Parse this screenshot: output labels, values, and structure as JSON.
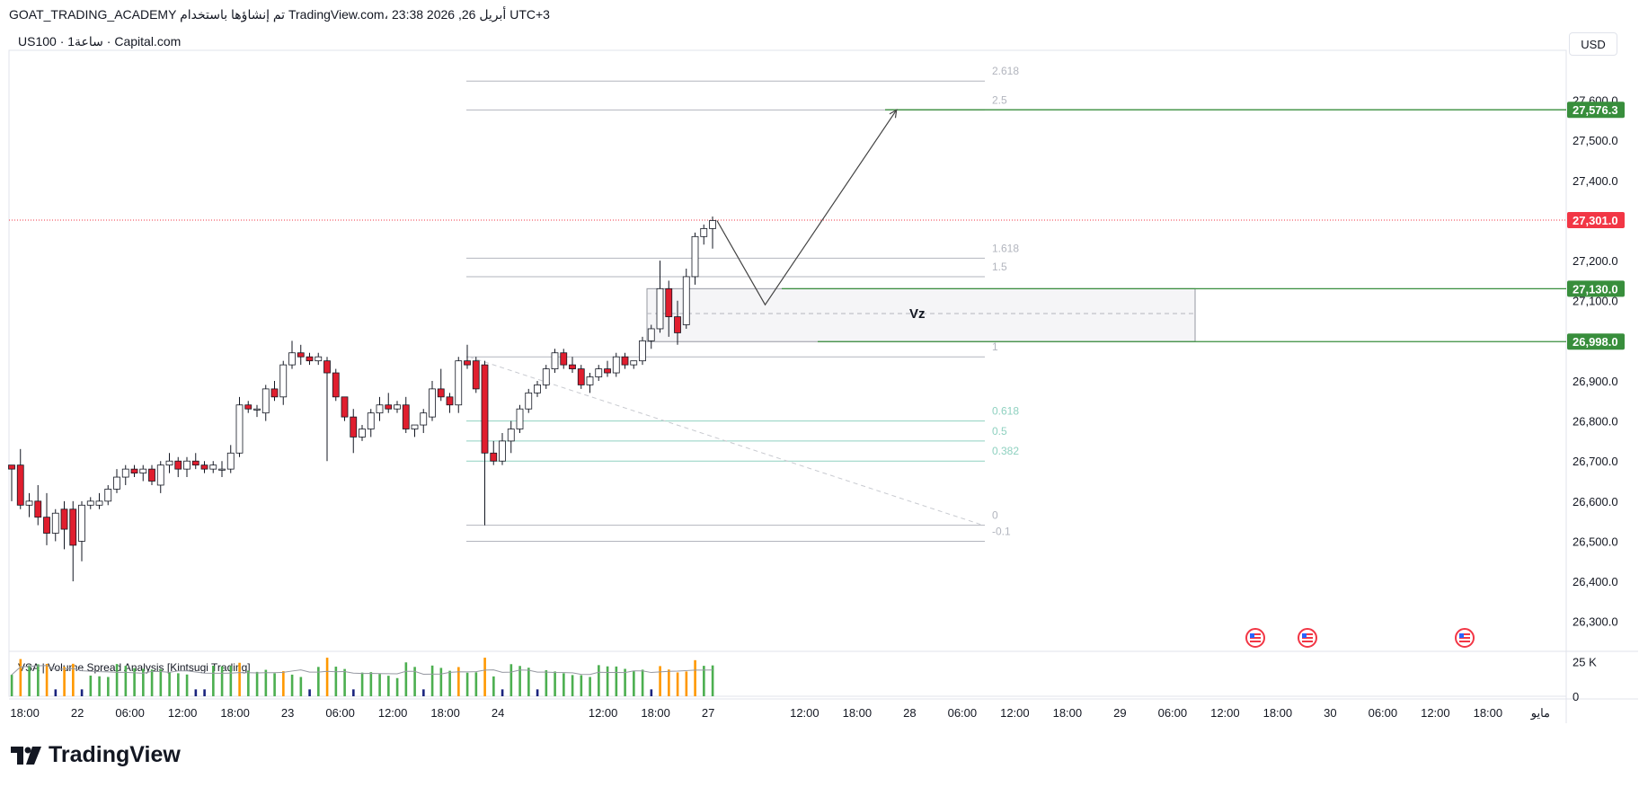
{
  "header": {
    "caption": "GOAT_TRADING_ACADEMY تم إنشاؤها باستخدام TradingView.com، 23:38 2026 ,26 أبريل UTC+3",
    "symbol": "US100 · 1ساعة · Capital.com",
    "currency": "USD"
  },
  "branding": {
    "logo_text": "TradingView"
  },
  "chart_data": {
    "type": "candlestick",
    "ylim": [
      26250,
      27700
    ],
    "y_ticks": [
      {
        "value": 27600,
        "label": "27,600.0"
      },
      {
        "value": 27500,
        "label": "27,500.0"
      },
      {
        "value": 27400,
        "label": "27,400.0"
      },
      {
        "value": 27200,
        "label": "27,200.0"
      },
      {
        "value": 27100,
        "label": "27,100.0"
      },
      {
        "value": 26900,
        "label": "26,900.0"
      },
      {
        "value": 26800,
        "label": "26,800.0"
      },
      {
        "value": 26700,
        "label": "26,700.0"
      },
      {
        "value": 26600,
        "label": "26,600.0"
      },
      {
        "value": 26500,
        "label": "26,500.0"
      },
      {
        "value": 26400,
        "label": "26,400.0"
      },
      {
        "value": 26300,
        "label": "26,300.0"
      }
    ],
    "price_tags": [
      {
        "value": 27576.3,
        "label": "27,576.3",
        "color": "#388e3c"
      },
      {
        "value": 27301.0,
        "label": "27,301.0",
        "color": "#f23645"
      },
      {
        "value": 27130.0,
        "label": "27,130.0",
        "color": "#388e3c"
      },
      {
        "value": 26998.0,
        "label": "26,998.0",
        "color": "#388e3c"
      }
    ],
    "x_ticks": [
      {
        "i": 1.5,
        "label": "18:00"
      },
      {
        "i": 7.5,
        "label": "22"
      },
      {
        "i": 13.5,
        "label": "06:00"
      },
      {
        "i": 19.5,
        "label": "12:00"
      },
      {
        "i": 25.5,
        "label": "18:00"
      },
      {
        "i": 31.5,
        "label": "23"
      },
      {
        "i": 37.5,
        "label": "06:00"
      },
      {
        "i": 43.5,
        "label": "12:00"
      },
      {
        "i": 49.5,
        "label": "18:00"
      },
      {
        "i": 55.5,
        "label": "24"
      },
      {
        "i": 67.5,
        "label": "12:00"
      },
      {
        "i": 73.5,
        "label": "18:00"
      },
      {
        "i": 79.5,
        "label": "27"
      },
      {
        "i": 90.5,
        "label": "12:00"
      },
      {
        "i": 96.5,
        "label": "18:00"
      },
      {
        "i": 102.5,
        "label": "28"
      },
      {
        "i": 108.5,
        "label": "06:00"
      },
      {
        "i": 114.5,
        "label": "12:00"
      },
      {
        "i": 120.5,
        "label": "18:00"
      },
      {
        "i": 126.5,
        "label": "29"
      },
      {
        "i": 132.5,
        "label": "06:00"
      },
      {
        "i": 138.5,
        "label": "12:00"
      },
      {
        "i": 144.5,
        "label": "18:00"
      },
      {
        "i": 150.5,
        "label": "30"
      },
      {
        "i": 156.5,
        "label": "06:00"
      },
      {
        "i": 162.5,
        "label": "12:00"
      },
      {
        "i": 168.5,
        "label": "18:00"
      },
      {
        "i": 174.5,
        "label": "مايو"
      }
    ],
    "candles": [
      {
        "o": 26690,
        "h": 26690,
        "l": 26600,
        "c": 26680
      },
      {
        "o": 26690,
        "h": 26730,
        "l": 26580,
        "c": 26590
      },
      {
        "o": 26590,
        "h": 26620,
        "l": 26560,
        "c": 26600
      },
      {
        "o": 26600,
        "h": 26640,
        "l": 26540,
        "c": 26560
      },
      {
        "o": 26560,
        "h": 26620,
        "l": 26490,
        "c": 26520
      },
      {
        "o": 26520,
        "h": 26580,
        "l": 26500,
        "c": 26570
      },
      {
        "o": 26580,
        "h": 26600,
        "l": 26480,
        "c": 26530
      },
      {
        "o": 26580,
        "h": 26600,
        "l": 26400,
        "c": 26490
      },
      {
        "o": 26500,
        "h": 26600,
        "l": 26450,
        "c": 26590
      },
      {
        "o": 26590,
        "h": 26610,
        "l": 26580,
        "c": 26600
      },
      {
        "o": 26590,
        "h": 26620,
        "l": 26580,
        "c": 26600
      },
      {
        "o": 26600,
        "h": 26640,
        "l": 26590,
        "c": 26630
      },
      {
        "o": 26630,
        "h": 26680,
        "l": 26620,
        "c": 26660
      },
      {
        "o": 26660,
        "h": 26690,
        "l": 26640,
        "c": 26680
      },
      {
        "o": 26680,
        "h": 26690,
        "l": 26660,
        "c": 26670
      },
      {
        "o": 26670,
        "h": 26690,
        "l": 26650,
        "c": 26680
      },
      {
        "o": 26680,
        "h": 26690,
        "l": 26640,
        "c": 26650
      },
      {
        "o": 26640,
        "h": 26700,
        "l": 26620,
        "c": 26690
      },
      {
        "o": 26690,
        "h": 26720,
        "l": 26670,
        "c": 26700
      },
      {
        "o": 26700,
        "h": 26710,
        "l": 26660,
        "c": 26680
      },
      {
        "o": 26680,
        "h": 26710,
        "l": 26660,
        "c": 26700
      },
      {
        "o": 26700,
        "h": 26720,
        "l": 26680,
        "c": 26690
      },
      {
        "o": 26690,
        "h": 26700,
        "l": 26670,
        "c": 26680
      },
      {
        "o": 26680,
        "h": 26700,
        "l": 26670,
        "c": 26690
      },
      {
        "o": 26680,
        "h": 26700,
        "l": 26660,
        "c": 26680
      },
      {
        "o": 26680,
        "h": 26740,
        "l": 26670,
        "c": 26720
      },
      {
        "o": 26720,
        "h": 26860,
        "l": 26710,
        "c": 26840
      },
      {
        "o": 26840,
        "h": 26850,
        "l": 26820,
        "c": 26830
      },
      {
        "o": 26830,
        "h": 26840,
        "l": 26810,
        "c": 26830
      },
      {
        "o": 26820,
        "h": 26890,
        "l": 26800,
        "c": 26880
      },
      {
        "o": 26880,
        "h": 26900,
        "l": 26850,
        "c": 26860
      },
      {
        "o": 26860,
        "h": 26950,
        "l": 26840,
        "c": 26940
      },
      {
        "o": 26940,
        "h": 27000,
        "l": 26930,
        "c": 26970
      },
      {
        "o": 26970,
        "h": 26990,
        "l": 26940,
        "c": 26960
      },
      {
        "o": 26960,
        "h": 26970,
        "l": 26940,
        "c": 26950
      },
      {
        "o": 26950,
        "h": 26970,
        "l": 26940,
        "c": 26960
      },
      {
        "o": 26950,
        "h": 26960,
        "l": 26700,
        "c": 26920
      },
      {
        "o": 26920,
        "h": 26930,
        "l": 26850,
        "c": 26860
      },
      {
        "o": 26860,
        "h": 26860,
        "l": 26800,
        "c": 26810
      },
      {
        "o": 26810,
        "h": 26830,
        "l": 26720,
        "c": 26760
      },
      {
        "o": 26760,
        "h": 26790,
        "l": 26750,
        "c": 26780
      },
      {
        "o": 26780,
        "h": 26830,
        "l": 26760,
        "c": 26820
      },
      {
        "o": 26820,
        "h": 26860,
        "l": 26800,
        "c": 26840
      },
      {
        "o": 26840,
        "h": 26870,
        "l": 26820,
        "c": 26830
      },
      {
        "o": 26830,
        "h": 26850,
        "l": 26820,
        "c": 26840
      },
      {
        "o": 26840,
        "h": 26860,
        "l": 26770,
        "c": 26780
      },
      {
        "o": 26780,
        "h": 26790,
        "l": 26760,
        "c": 26790
      },
      {
        "o": 26790,
        "h": 26830,
        "l": 26770,
        "c": 26820
      },
      {
        "o": 26810,
        "h": 26900,
        "l": 26800,
        "c": 26880
      },
      {
        "o": 26880,
        "h": 26930,
        "l": 26850,
        "c": 26860
      },
      {
        "o": 26860,
        "h": 26870,
        "l": 26820,
        "c": 26840
      },
      {
        "o": 26840,
        "h": 26960,
        "l": 26820,
        "c": 26950
      },
      {
        "o": 26950,
        "h": 26990,
        "l": 26930,
        "c": 26940
      },
      {
        "o": 26950,
        "h": 26960,
        "l": 26870,
        "c": 26880
      },
      {
        "o": 26940,
        "h": 26950,
        "l": 26540,
        "c": 26720
      },
      {
        "o": 26720,
        "h": 26750,
        "l": 26690,
        "c": 26700
      },
      {
        "o": 26700,
        "h": 26770,
        "l": 26690,
        "c": 26750
      },
      {
        "o": 26750,
        "h": 26800,
        "l": 26720,
        "c": 26780
      },
      {
        "o": 26780,
        "h": 26840,
        "l": 26770,
        "c": 26830
      },
      {
        "o": 26830,
        "h": 26880,
        "l": 26820,
        "c": 26870
      },
      {
        "o": 26870,
        "h": 26900,
        "l": 26860,
        "c": 26890
      },
      {
        "o": 26890,
        "h": 26940,
        "l": 26880,
        "c": 26930
      },
      {
        "o": 26930,
        "h": 26980,
        "l": 26920,
        "c": 26970
      },
      {
        "o": 26970,
        "h": 26980,
        "l": 26930,
        "c": 26940
      },
      {
        "o": 26940,
        "h": 26960,
        "l": 26920,
        "c": 26930
      },
      {
        "o": 26930,
        "h": 26940,
        "l": 26880,
        "c": 26890
      },
      {
        "o": 26890,
        "h": 26920,
        "l": 26870,
        "c": 26910
      },
      {
        "o": 26910,
        "h": 26940,
        "l": 26900,
        "c": 26930
      },
      {
        "o": 26930,
        "h": 26950,
        "l": 26910,
        "c": 26920
      },
      {
        "o": 26920,
        "h": 26970,
        "l": 26910,
        "c": 26960
      },
      {
        "o": 26960,
        "h": 26970,
        "l": 26930,
        "c": 26940
      },
      {
        "o": 26940,
        "h": 26950,
        "l": 26930,
        "c": 26950
      },
      {
        "o": 26950,
        "h": 27010,
        "l": 26940,
        "c": 27000
      },
      {
        "o": 27000,
        "h": 27040,
        "l": 26980,
        "c": 27030
      },
      {
        "o": 27030,
        "h": 27200,
        "l": 27020,
        "c": 27130
      },
      {
        "o": 27130,
        "h": 27150,
        "l": 27010,
        "c": 27060
      },
      {
        "o": 27060,
        "h": 27100,
        "l": 26990,
        "c": 27020
      },
      {
        "o": 27040,
        "h": 27180,
        "l": 27030,
        "c": 27160
      },
      {
        "o": 27160,
        "h": 27270,
        "l": 27140,
        "c": 27260
      },
      {
        "o": 27260,
        "h": 27290,
        "l": 27240,
        "c": 27280
      },
      {
        "o": 27280,
        "h": 27310,
        "l": 27230,
        "c": 27300
      }
    ],
    "volume": {
      "label": "VSA | Volume Spread Analysis [Kintsugi Trading]",
      "y_ticks": [
        {
          "value": 25000,
          "label": "25 K"
        },
        {
          "value": 0,
          "label": "0"
        }
      ],
      "max": 30000
    },
    "fib_levels": [
      {
        "value": 27648,
        "label": "2.618",
        "color": "#b2b5be"
      },
      {
        "value": 27576,
        "label": "2.5",
        "color": "#b2b5be"
      },
      {
        "value": 27206,
        "label": "1.618",
        "color": "#b2b5be"
      },
      {
        "value": 27160,
        "label": "1.5",
        "color": "#b2b5be"
      },
      {
        "value": 26960,
        "label": "1",
        "color": "#b2b5be"
      },
      {
        "value": 26800,
        "label": "0.618",
        "color": "#8fd1c0"
      },
      {
        "value": 26750,
        "label": "0.5",
        "color": "#8fd1c0"
      },
      {
        "value": 26700,
        "label": "0.382",
        "color": "#8fd1c0"
      },
      {
        "value": 26540,
        "label": "0",
        "color": "#b2b5be"
      },
      {
        "value": 26500,
        "label": "-0.1",
        "color": "#b2b5be"
      }
    ],
    "zone": {
      "label": "Vz",
      "top": 27130,
      "bottom": 26998,
      "mid": 27068
    },
    "projection": [
      {
        "i": 80.5,
        "value": 27300
      },
      {
        "i": 86,
        "value": 27090
      },
      {
        "i": 101,
        "value": 27576
      }
    ],
    "colors": {
      "up": "#4caf50",
      "down": "#f23645",
      "candle_up": "#ffffff",
      "candle_down": "#e01e2e",
      "level": "#388e3c"
    }
  }
}
